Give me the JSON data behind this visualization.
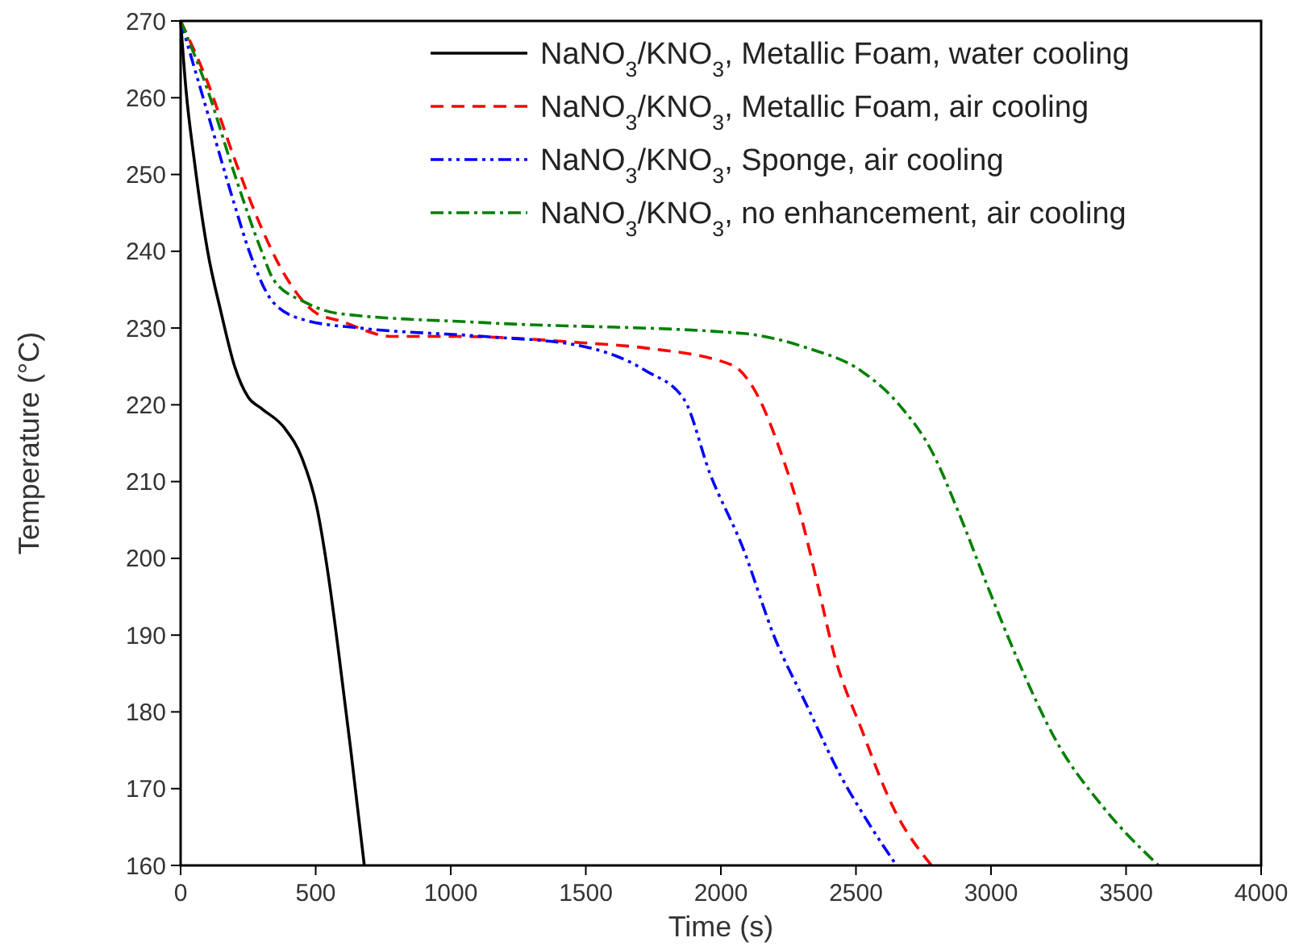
{
  "chart_data": {
    "type": "line",
    "xlabel": "Time (s)",
    "ylabel": "Temperature (°C)",
    "xlim": [
      0,
      4000
    ],
    "ylim": [
      160,
      270
    ],
    "xticks": [
      0,
      500,
      1000,
      1500,
      2000,
      2500,
      3000,
      3500,
      4000
    ],
    "yticks": [
      160,
      170,
      180,
      190,
      200,
      210,
      220,
      230,
      240,
      250,
      260,
      270
    ],
    "grid": false,
    "legend": "top right",
    "marker": "none",
    "series": [
      {
        "name": "NaNO$_{3}$/KNO$_{3}$, Metallic Foam, water cooling",
        "color": "#000000",
        "line_style": "solid",
        "x": [
          0,
          20,
          50,
          100,
          150,
          200,
          250,
          300,
          384,
          450,
          504,
          550,
          584,
          630,
          680
        ],
        "values": [
          270,
          261,
          252,
          240,
          232,
          225,
          221,
          219.5,
          217,
          213,
          206.7,
          197,
          188,
          175,
          160
        ]
      },
      {
        "name": "NaNO$_{3}$/KNO$_{3}$, Metallic Foam, air cooling",
        "color": "#ff0000",
        "line_style": "dashed",
        "x": [
          0,
          100,
          200,
          300,
          384,
          504,
          584,
          784,
          1024,
          1480,
          1720,
          2040,
          2120,
          2220,
          2300,
          2360,
          2420,
          2520,
          2640,
          2780
        ],
        "values": [
          270,
          262,
          252,
          243,
          237,
          231.9,
          231,
          228.9,
          228.9,
          228.1,
          227.4,
          225.2,
          222.2,
          214,
          205,
          196.3,
          187.4,
          177.8,
          167.4,
          160
        ]
      },
      {
        "name": "NaNO$_{3}$/KNO$_{3}$, Sponge, air cooling",
        "color": "#0000ff",
        "line_style": "dashdotdot",
        "x": [
          0,
          100,
          200,
          254,
          344,
          464,
          664,
          1124,
          1464,
          1724,
          1864,
          1960,
          2080,
          2200,
          2320,
          2440,
          2540,
          2650
        ],
        "values": [
          270,
          258,
          246,
          240,
          233.3,
          231,
          230,
          228.9,
          227.8,
          224.4,
          220.7,
          211,
          201.5,
          189.6,
          180.7,
          171.9,
          165.9,
          160
        ]
      },
      {
        "name": "NaNO$_{3}$/KNO$_{3}$, no enhancement, air cooling",
        "color": "#008000",
        "line_style": "dashdot",
        "x": [
          0,
          100,
          200,
          300,
          344,
          464,
          584,
          1124,
          2080,
          2320,
          2520,
          2660,
          2780,
          2880,
          2980,
          3100,
          3240,
          3420,
          3620
        ],
        "values": [
          270,
          261,
          250,
          240,
          236.3,
          233.3,
          231.9,
          230.7,
          229.3,
          227.4,
          224.4,
          220,
          214,
          206,
          197,
          186.7,
          176.3,
          167.4,
          160
        ]
      }
    ]
  }
}
